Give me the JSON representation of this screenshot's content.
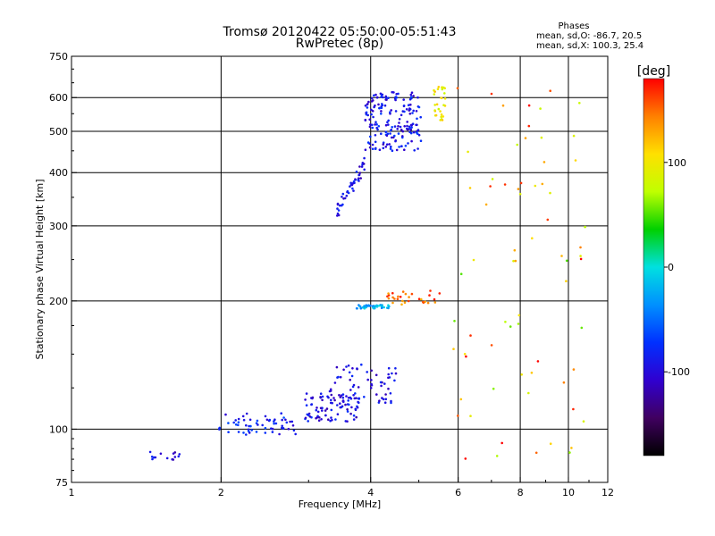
{
  "chart_data": {
    "type": "scatter",
    "title": "Tromsø 20120422 05:50:00-05:51:43",
    "subtitle": "RwPretec (8p)",
    "stats": {
      "heading": "Phases",
      "line1": "mean, sd,O: -86.7, 20.5",
      "line2": "mean, sd,X: 100.3, 25.4"
    },
    "xlabel": "Frequency [MHz]",
    "ylabel": "Stationary phase Virtual Height [km]",
    "xscale": "log",
    "yscale": "log",
    "xlim": [
      1,
      12
    ],
    "ylim": [
      75,
      750
    ],
    "xticks": [
      {
        "v": 1,
        "label": "1"
      },
      {
        "v": 2,
        "label": "2"
      },
      {
        "v": 4,
        "label": "4"
      },
      {
        "v": 6,
        "label": "6"
      },
      {
        "v": 8,
        "label": "8"
      },
      {
        "v": 10,
        "label": "10"
      },
      {
        "v": 12,
        "label": "12"
      }
    ],
    "yticks": [
      {
        "v": 75,
        "label": "75"
      },
      {
        "v": 100,
        "label": "100"
      },
      {
        "v": 200,
        "label": "200"
      },
      {
        "v": 300,
        "label": "300"
      },
      {
        "v": 400,
        "label": "400"
      },
      {
        "v": 500,
        "label": "500"
      },
      {
        "v": 600,
        "label": "600"
      },
      {
        "v": 750,
        "label": "750"
      }
    ],
    "grid_x": [
      2,
      4,
      6,
      8,
      10
    ],
    "grid_y": [
      100,
      200,
      300,
      400,
      500,
      600
    ],
    "colorbar": {
      "label": "[deg]",
      "range": [
        -180,
        180
      ],
      "ticks": [
        {
          "v": 100,
          "label": "100"
        },
        {
          "v": 0,
          "label": "0"
        },
        {
          "v": -100,
          "label": "-100"
        }
      ],
      "colors": [
        "#000000",
        "#400060",
        "#3000d0",
        "#0030ff",
        "#0090ff",
        "#00e0e0",
        "#00d000",
        "#c0ff00",
        "#ffe000",
        "#ff8000",
        "#ff0000"
      ]
    },
    "clusters": [
      {
        "name": "low-freq-echoes",
        "phase": -100,
        "fmin": 1.4,
        "fmax": 1.65,
        "hmin": 84,
        "hmax": 89,
        "n": 14
      },
      {
        "name": "E-region-echoes",
        "phase": -85,
        "fmin": 1.98,
        "fmax": 2.85,
        "hmin": 97,
        "hmax": 109,
        "n": 60
      },
      {
        "name": "lower-F-echoes-a",
        "phase": -95,
        "fmin": 2.95,
        "fmax": 3.8,
        "hmin": 104,
        "hmax": 122,
        "n": 90
      },
      {
        "name": "lower-F-echoes-b",
        "phase": -100,
        "fmin": 3.3,
        "fmax": 4.5,
        "hmin": 115,
        "hmax": 142,
        "n": 60
      },
      {
        "name": "sporadic-layer-200km",
        "phase": -20,
        "fmin": 3.75,
        "fmax": 4.4,
        "hmin": 192,
        "hmax": 196,
        "n": 40
      },
      {
        "name": "mixed-200km",
        "phase": 150,
        "fmin": 4.3,
        "fmax": 5.6,
        "hmin": 195,
        "hmax": 212,
        "n": 30
      },
      {
        "name": "F2-trace-lower",
        "phase": -95,
        "fmin": 3.4,
        "fmax": 3.9,
        "hmin": 320,
        "hmax": 420,
        "n": 45
      },
      {
        "name": "F2-trace-upper",
        "phase": -90,
        "fmin": 3.9,
        "fmax": 5.05,
        "hmin": 450,
        "hmax": 620,
        "n": 180
      },
      {
        "name": "X-mode-trace",
        "phase": 100,
        "fmin": 5.35,
        "fmax": 5.65,
        "hmin": 530,
        "hmax": 640,
        "n": 30
      },
      {
        "name": "scattered-points",
        "phase": 120,
        "fmin": 5.8,
        "fmax": 11.0,
        "hmin": 85,
        "hmax": 650,
        "n": 70
      }
    ]
  }
}
